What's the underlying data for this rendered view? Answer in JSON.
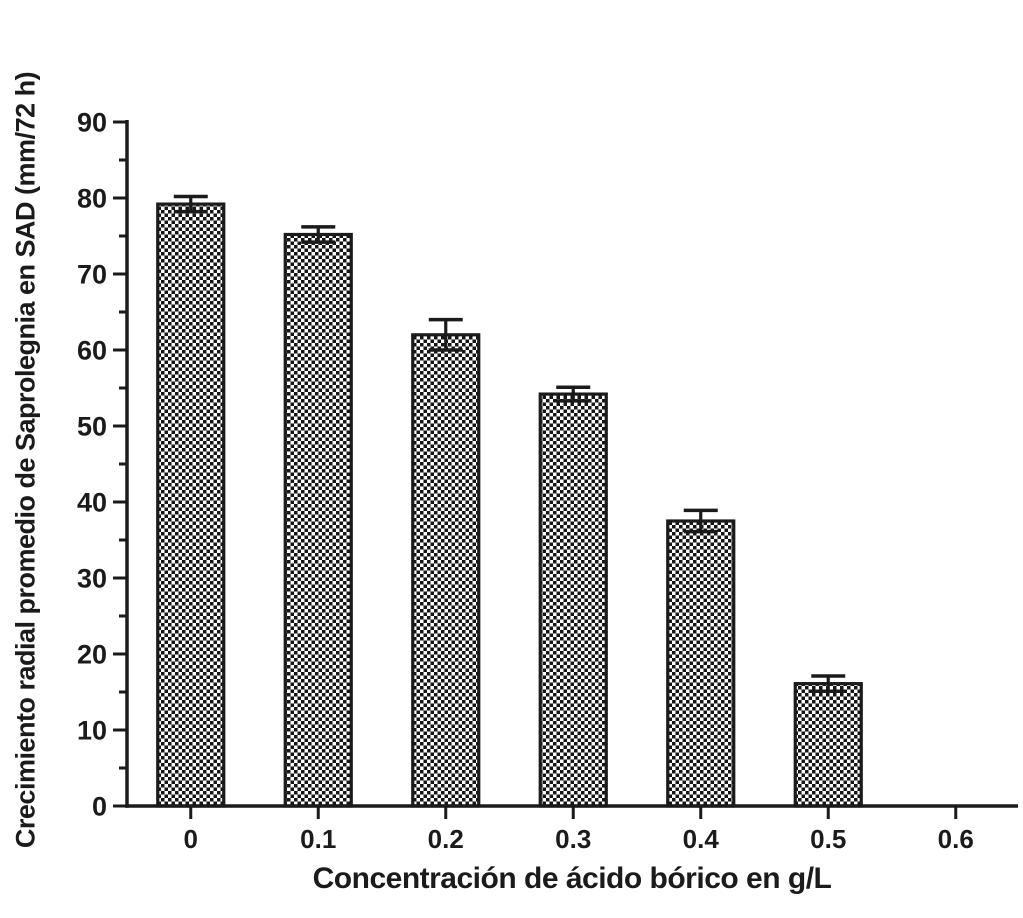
{
  "figure": {
    "background": "#ffffff",
    "ink_color": "#1b1b1b"
  },
  "chart_data": {
    "type": "bar",
    "title": "",
    "xlabel": "Concentración de ácido bórico en g/L",
    "ylabel": "Crecimiento radial promedio de Saprolegnia en SAD (mm/72 h)",
    "categories": [
      "0",
      "0.1",
      "0.2",
      "0.3",
      "0.4",
      "0.5",
      "0.6"
    ],
    "values": [
      79.2,
      75.2,
      62.0,
      54.2,
      37.5,
      16.1,
      0
    ],
    "errors": [
      1.0,
      1.0,
      2.0,
      0.9,
      1.4,
      1.0,
      0
    ],
    "error_bar_style": "symmetric-with-caps",
    "ylim": [
      0,
      90
    ],
    "ytick_major_step": 10,
    "ytick_minor_step": 5,
    "ytick_labels": [
      "0",
      "10",
      "20",
      "30",
      "40",
      "50",
      "60",
      "70",
      "80",
      "90"
    ],
    "bar_fill_pattern": "checkerboard",
    "bar_pattern_colors": [
      "#151515",
      "#ffffff"
    ],
    "bar_outline_color": "#1b1b1b",
    "grid": false,
    "legend": false
  }
}
